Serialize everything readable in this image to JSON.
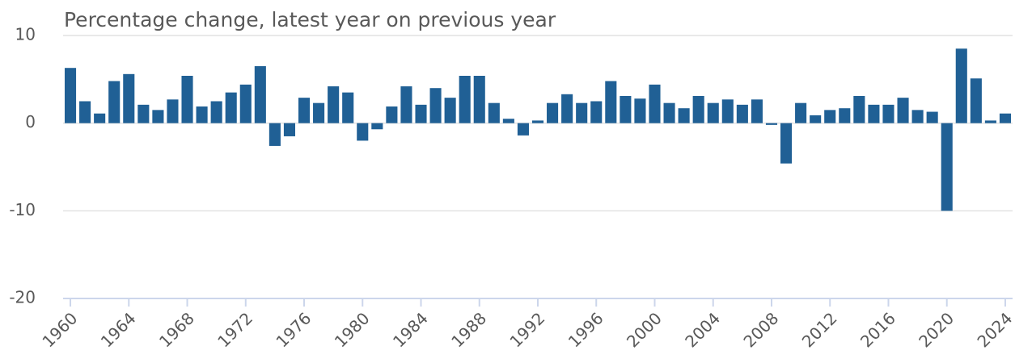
{
  "chart_data": {
    "type": "bar",
    "title": "Percentage change, latest year on previous year",
    "x": [
      1960,
      1961,
      1962,
      1963,
      1964,
      1965,
      1966,
      1967,
      1968,
      1969,
      1970,
      1971,
      1972,
      1973,
      1974,
      1975,
      1976,
      1977,
      1978,
      1979,
      1980,
      1981,
      1982,
      1983,
      1984,
      1985,
      1986,
      1987,
      1988,
      1989,
      1990,
      1991,
      1992,
      1993,
      1994,
      1995,
      1996,
      1997,
      1998,
      1999,
      2000,
      2001,
      2002,
      2003,
      2004,
      2005,
      2006,
      2007,
      2008,
      2009,
      2010,
      2011,
      2012,
      2013,
      2014,
      2015,
      2016,
      2017,
      2018,
      2019,
      2020,
      2021,
      2022,
      2023,
      2024
    ],
    "values": [
      6.3,
      2.5,
      1.1,
      4.8,
      5.6,
      2.1,
      1.5,
      2.7,
      5.4,
      1.9,
      2.5,
      3.5,
      4.4,
      6.5,
      -2.6,
      -1.5,
      2.9,
      2.3,
      4.2,
      3.5,
      -2.0,
      -0.7,
      1.9,
      4.2,
      2.1,
      4.0,
      2.9,
      5.4,
      5.4,
      2.3,
      0.5,
      -1.4,
      0.3,
      2.3,
      3.3,
      2.3,
      2.5,
      4.8,
      3.1,
      2.8,
      4.4,
      2.3,
      1.7,
      3.1,
      2.3,
      2.7,
      2.1,
      2.7,
      -0.2,
      -4.6,
      2.3,
      0.9,
      1.5,
      1.7,
      3.1,
      2.1,
      2.1,
      2.9,
      1.5,
      1.3,
      -10.0,
      8.5,
      5.1,
      0.3,
      1.1
    ],
    "color": "#206095",
    "xlim": [
      1959.5,
      2024.5
    ],
    "xticks": [
      1960,
      1964,
      1968,
      1972,
      1976,
      1980,
      1984,
      1988,
      1992,
      1996,
      2000,
      2004,
      2008,
      2012,
      2016,
      2020,
      2024
    ],
    "ylim": [
      -20,
      10
    ],
    "yticks": [
      -20,
      -10,
      0,
      10
    ],
    "grid": true
  }
}
